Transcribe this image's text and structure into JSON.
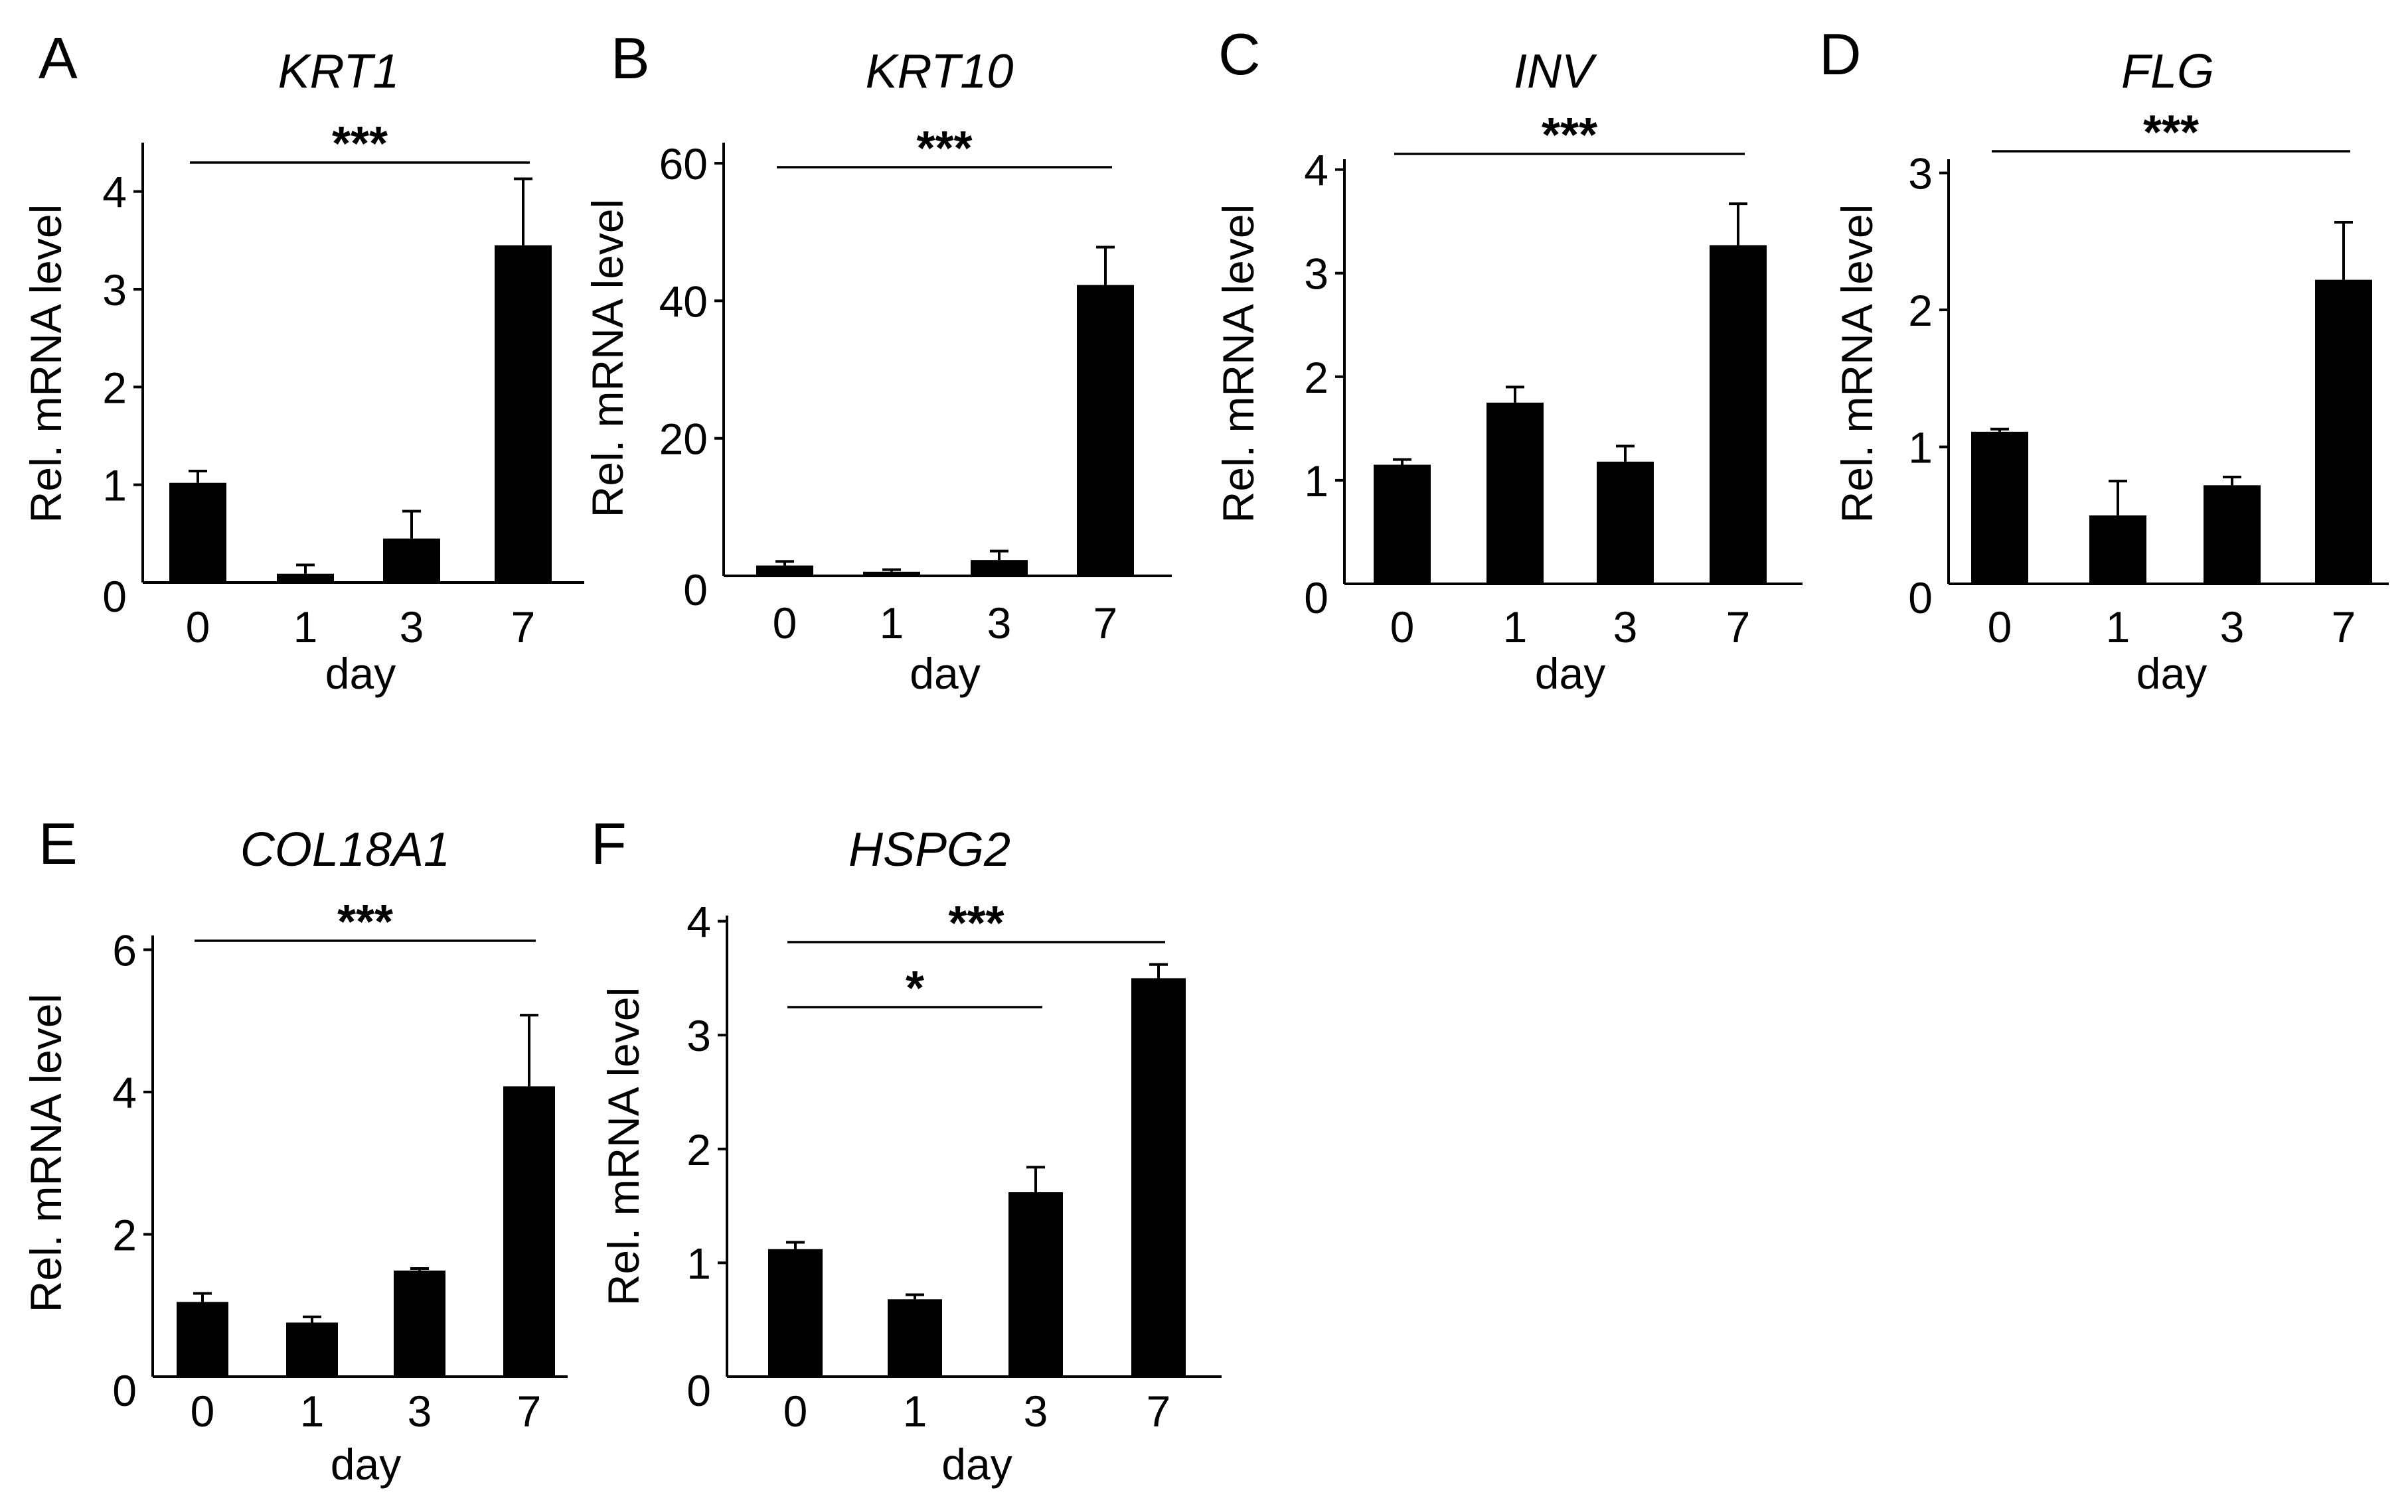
{
  "chart_data": [
    {
      "type": "bar",
      "panel": "A",
      "title": "KRT1",
      "xlabel": "day",
      "ylabel": "Rel. mRNA level",
      "categories": [
        "0",
        "1",
        "3",
        "7"
      ],
      "values": [
        1.02,
        0.09,
        0.45,
        3.45
      ],
      "errors": [
        0.12,
        0.09,
        0.28,
        0.68
      ],
      "ylim": [
        0,
        4.5
      ],
      "yticks": [
        "0",
        "1",
        "2",
        "3",
        "4"
      ],
      "significance": [
        {
          "from": "0",
          "to": "7",
          "label": "***"
        }
      ]
    },
    {
      "type": "bar",
      "panel": "B",
      "title": "KRT10",
      "xlabel": "day",
      "ylabel": "Rel. mRNA level",
      "categories": [
        "0",
        "1",
        "3",
        "7"
      ],
      "values": [
        1.5,
        0.6,
        2.3,
        42.3
      ],
      "errors": [
        0.6,
        0.3,
        1.3,
        5.5
      ],
      "ylim": [
        0,
        63
      ],
      "yticks": [
        "0",
        "20",
        "40",
        "60"
      ],
      "significance": [
        {
          "from": "0",
          "to": "7",
          "label": "***"
        }
      ]
    },
    {
      "type": "bar",
      "panel": "C",
      "title": "INV",
      "xlabel": "day",
      "ylabel": "Rel. mRNA level",
      "categories": [
        "0",
        "1",
        "3",
        "7"
      ],
      "values": [
        1.15,
        1.75,
        1.18,
        3.27
      ],
      "errors": [
        0.05,
        0.15,
        0.15,
        0.4
      ],
      "ylim": [
        0,
        4.1
      ],
      "yticks": [
        "0",
        "1",
        "2",
        "3",
        "4"
      ],
      "significance": [
        {
          "from": "0",
          "to": "7",
          "label": "***"
        }
      ]
    },
    {
      "type": "bar",
      "panel": "D",
      "title": "FLG",
      "xlabel": "day",
      "ylabel": "Rel. mRNA level",
      "categories": [
        "0",
        "1",
        "3",
        "7"
      ],
      "values": [
        1.11,
        0.5,
        0.72,
        2.22
      ],
      "errors": [
        0.02,
        0.25,
        0.06,
        0.42
      ],
      "ylim": [
        0,
        3.1
      ],
      "yticks": [
        "0",
        "1",
        "2",
        "3"
      ],
      "significance": [
        {
          "from": "0",
          "to": "7",
          "label": "***"
        }
      ]
    },
    {
      "type": "bar",
      "panel": "E",
      "title": "COL18A1",
      "xlabel": "day",
      "ylabel": "Rel. mRNA level",
      "categories": [
        "0",
        "1",
        "3",
        "7"
      ],
      "values": [
        1.05,
        0.76,
        1.49,
        4.08
      ],
      "errors": [
        0.12,
        0.08,
        0.03,
        1.0
      ],
      "ylim": [
        0,
        6.2
      ],
      "yticks": [
        "0",
        "2",
        "4",
        "6"
      ],
      "significance": [
        {
          "from": "0",
          "to": "7",
          "label": "***"
        }
      ]
    },
    {
      "type": "bar",
      "panel": "F",
      "title": "HSPG2",
      "xlabel": "day",
      "ylabel": "Rel. mRNA level",
      "categories": [
        "0",
        "1",
        "3",
        "7"
      ],
      "values": [
        1.12,
        0.68,
        1.62,
        3.5
      ],
      "errors": [
        0.06,
        0.04,
        0.22,
        0.12
      ],
      "ylim": [
        0,
        4.05
      ],
      "yticks": [
        "0",
        "1",
        "2",
        "3",
        "4"
      ],
      "significance": [
        {
          "from": "0",
          "to": "7",
          "label": "***"
        },
        {
          "from": "0",
          "to": "3",
          "label": "*"
        }
      ]
    }
  ]
}
